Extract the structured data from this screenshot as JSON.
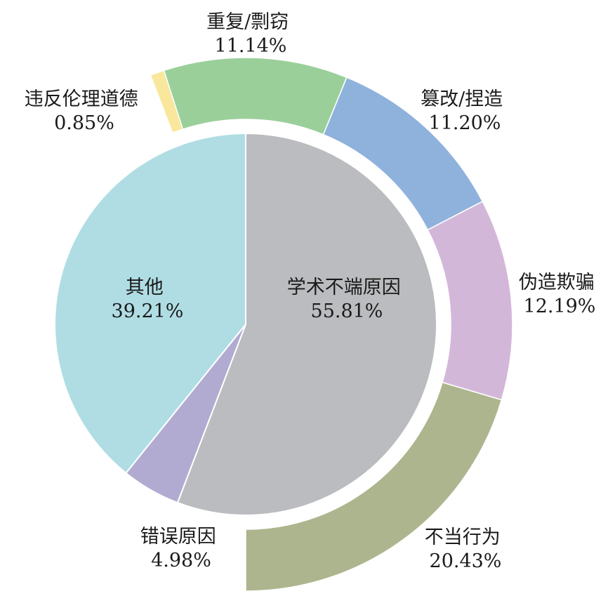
{
  "chart_data": {
    "type": "pie",
    "subtype": "nested-donut",
    "inner": [
      {
        "label": "学术不端原因",
        "value": 55.81,
        "value_text": "55.81%",
        "color": "#bbbcbf"
      },
      {
        "label": "错误原因",
        "value": 4.98,
        "value_text": "4.98%",
        "color": "#b1abd1"
      },
      {
        "label": "其他",
        "value": 39.21,
        "value_text": "39.21%",
        "color": "#b0dde4"
      }
    ],
    "outer": [
      {
        "label": "违反伦理道德",
        "value": 0.85,
        "value_text": "0.85%",
        "color": "#f8e79c"
      },
      {
        "label": "重复/剽窃",
        "value": 11.14,
        "value_text": "11.14%",
        "color": "#9bcf9a"
      },
      {
        "label": "篡改/捏造",
        "value": 11.2,
        "value_text": "11.20%",
        "color": "#8fb2dc"
      },
      {
        "label": "伪造欺骗",
        "value": 12.19,
        "value_text": "12.19%",
        "color": "#d3b7d9"
      },
      {
        "label": "不当行为",
        "value": 20.43,
        "value_text": "20.43%",
        "color": "#adb58e"
      }
    ]
  }
}
